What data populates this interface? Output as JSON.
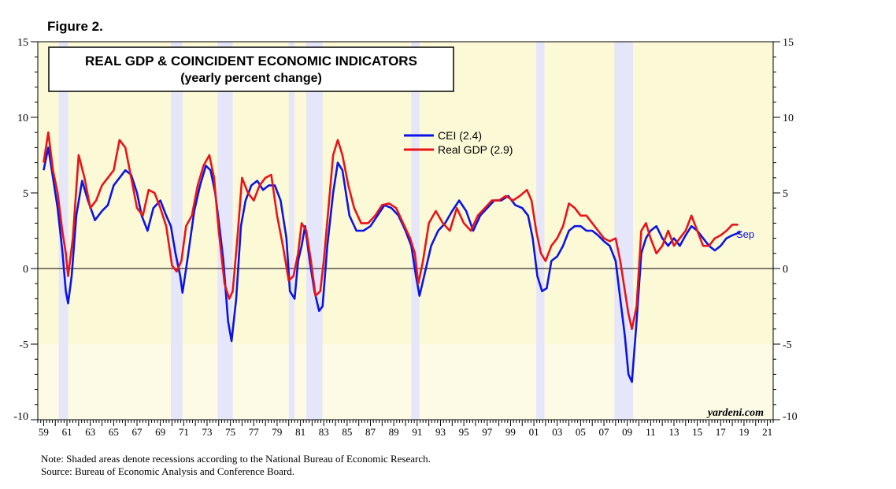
{
  "figure_label": "Figure 2.",
  "footnote": "Note: Shaded areas denote recessions according to the National Bureau of Economic Research.",
  "source": "Source: Bureau of Economic Analysis and Conference Board.",
  "watermark": "yardeni.com",
  "colors": {
    "background": "#fcf9d6",
    "recession": "#e6e6fa",
    "cei": "#0b14e6",
    "gdp": "#e8141a"
  },
  "chart_data": {
    "type": "line",
    "title": "REAL GDP & COINCIDENT ECONOMIC INDICATORS",
    "subtitle": "(yearly percent change)",
    "xlabel": "",
    "ylabel": "",
    "xlim": [
      1958.5,
      2021.5
    ],
    "ylim": [
      -10,
      15
    ],
    "yticks": [
      -10,
      -5,
      0,
      5,
      10,
      15
    ],
    "xtick_labels": [
      "59",
      "61",
      "63",
      "65",
      "67",
      "69",
      "71",
      "73",
      "75",
      "77",
      "79",
      "81",
      "83",
      "85",
      "87",
      "89",
      "91",
      "93",
      "95",
      "97",
      "99",
      "01",
      "03",
      "05",
      "07",
      "09",
      "11",
      "13",
      "15",
      "17",
      "19",
      "21"
    ],
    "xtick_years": [
      1959,
      1961,
      1963,
      1965,
      1967,
      1969,
      1971,
      1973,
      1975,
      1977,
      1979,
      1981,
      1983,
      1985,
      1987,
      1989,
      1991,
      1993,
      1995,
      1997,
      1999,
      2001,
      2003,
      2005,
      2007,
      2009,
      2011,
      2013,
      2015,
      2017,
      2019,
      2021
    ],
    "legend_position": "top-center",
    "end_annotation": "Sep",
    "recessions": [
      [
        1960.3,
        1961.1
      ],
      [
        1969.9,
        1970.9
      ],
      [
        1973.9,
        1975.2
      ],
      [
        1980.0,
        1980.5
      ],
      [
        1981.5,
        1982.9
      ],
      [
        1990.5,
        1991.2
      ],
      [
        2001.2,
        2001.9
      ],
      [
        2007.9,
        2009.5
      ]
    ],
    "series": [
      {
        "name": "CEI (2.4)",
        "x": [
          1959.0,
          1959.4,
          1959.8,
          1960.2,
          1960.6,
          1960.9,
          1961.1,
          1961.4,
          1961.8,
          1962.3,
          1962.8,
          1963.4,
          1964.0,
          1964.5,
          1965.0,
          1965.5,
          1966.0,
          1966.5,
          1967.0,
          1967.4,
          1967.9,
          1968.4,
          1969.0,
          1969.5,
          1969.9,
          1970.3,
          1970.7,
          1970.9,
          1971.3,
          1971.9,
          1972.4,
          1972.9,
          1973.3,
          1973.7,
          1974.1,
          1974.4,
          1974.8,
          1975.1,
          1975.5,
          1975.9,
          1976.3,
          1976.8,
          1977.3,
          1977.8,
          1978.3,
          1978.8,
          1979.3,
          1979.8,
          1980.1,
          1980.5,
          1980.8,
          1981.1,
          1981.4,
          1981.8,
          1982.2,
          1982.6,
          1982.9,
          1983.3,
          1983.8,
          1984.2,
          1984.6,
          1985.2,
          1985.8,
          1986.4,
          1987.0,
          1987.6,
          1988.2,
          1988.8,
          1989.4,
          1990.0,
          1990.5,
          1990.9,
          1991.2,
          1991.6,
          1992.2,
          1992.8,
          1993.4,
          1994.0,
          1994.6,
          1995.2,
          1995.8,
          1996.4,
          1997.0,
          1997.6,
          1998.2,
          1998.8,
          1999.4,
          2000.0,
          2000.5,
          2000.9,
          2001.3,
          2001.7,
          2002.1,
          2002.5,
          2003.0,
          2003.5,
          2004.0,
          2004.5,
          2005.0,
          2005.5,
          2006.0,
          2006.5,
          2007.0,
          2007.5,
          2008.0,
          2008.4,
          2008.8,
          2009.1,
          2009.4,
          2009.8,
          2010.2,
          2010.6,
          2011.0,
          2011.5,
          2012.0,
          2012.5,
          2013.0,
          2013.5,
          2014.0,
          2014.5,
          2015.0,
          2015.5,
          2016.0,
          2016.5,
          2017.0,
          2017.5,
          2018.0,
          2018.7
        ],
        "y": [
          6.5,
          8.0,
          6.0,
          4.0,
          1.2,
          -1.5,
          -2.3,
          -0.5,
          3.5,
          5.8,
          4.5,
          3.2,
          3.8,
          4.2,
          5.5,
          6.0,
          6.5,
          6.2,
          5.0,
          3.5,
          2.5,
          4.0,
          4.5,
          3.5,
          2.8,
          1.0,
          -0.5,
          -1.6,
          0.5,
          3.8,
          5.5,
          6.8,
          6.5,
          5.0,
          2.5,
          0.5,
          -3.5,
          -4.8,
          -2.0,
          2.8,
          4.5,
          5.5,
          5.8,
          5.2,
          5.5,
          5.5,
          4.5,
          2.0,
          -1.5,
          -2.0,
          0.5,
          1.5,
          2.8,
          0.5,
          -1.5,
          -2.8,
          -2.5,
          1.5,
          5.0,
          7.0,
          6.5,
          3.5,
          2.5,
          2.5,
          2.8,
          3.5,
          4.2,
          4.0,
          3.5,
          2.5,
          1.5,
          -0.5,
          -1.8,
          -0.5,
          1.5,
          2.5,
          3.0,
          3.8,
          4.5,
          3.8,
          2.5,
          3.5,
          4.0,
          4.5,
          4.5,
          4.8,
          4.2,
          4.0,
          3.5,
          2.0,
          -0.5,
          -1.5,
          -1.3,
          0.5,
          0.8,
          1.5,
          2.5,
          2.8,
          2.8,
          2.5,
          2.5,
          2.2,
          1.8,
          1.5,
          0.5,
          -2.0,
          -4.5,
          -7.0,
          -7.5,
          -3.5,
          1.0,
          2.0,
          2.5,
          2.8,
          2.0,
          1.5,
          2.0,
          1.5,
          2.2,
          2.8,
          2.5,
          2.0,
          1.5,
          1.2,
          1.5,
          2.0,
          2.2,
          2.4
        ]
      },
      {
        "name": "Real GDP (2.9)",
        "x": [
          1959.0,
          1959.4,
          1959.8,
          1960.2,
          1960.6,
          1960.9,
          1961.1,
          1961.5,
          1962.0,
          1962.5,
          1963.0,
          1963.5,
          1964.0,
          1964.5,
          1965.0,
          1965.5,
          1966.0,
          1966.5,
          1967.0,
          1967.5,
          1968.0,
          1968.5,
          1969.0,
          1969.5,
          1970.0,
          1970.4,
          1970.8,
          1971.2,
          1971.7,
          1972.2,
          1972.7,
          1973.2,
          1973.6,
          1974.0,
          1974.5,
          1974.9,
          1975.2,
          1975.6,
          1976.0,
          1976.5,
          1977.0,
          1977.5,
          1978.0,
          1978.5,
          1979.0,
          1979.5,
          1980.0,
          1980.4,
          1980.8,
          1981.1,
          1981.5,
          1981.9,
          1982.3,
          1982.7,
          1983.0,
          1983.4,
          1983.8,
          1984.2,
          1984.6,
          1985.1,
          1985.6,
          1986.2,
          1986.8,
          1987.4,
          1988.0,
          1988.6,
          1989.2,
          1989.8,
          1990.4,
          1990.8,
          1991.1,
          1991.5,
          1992.0,
          1992.6,
          1993.2,
          1993.8,
          1994.4,
          1995.0,
          1995.6,
          1996.2,
          1996.8,
          1997.4,
          1998.0,
          1998.6,
          1999.2,
          1999.8,
          2000.4,
          2000.8,
          2001.2,
          2001.6,
          2002.0,
          2002.5,
          2003.0,
          2003.5,
          2004.0,
          2004.5,
          2005.0,
          2005.5,
          2006.0,
          2006.5,
          2007.0,
          2007.5,
          2008.0,
          2008.4,
          2008.8,
          2009.1,
          2009.4,
          2009.8,
          2010.2,
          2010.6,
          2011.0,
          2011.5,
          2012.0,
          2012.5,
          2013.0,
          2013.5,
          2014.0,
          2014.5,
          2015.0,
          2015.5,
          2016.0,
          2016.5,
          2017.0,
          2017.5,
          2018.0,
          2018.5
        ],
        "y": [
          7.0,
          9.0,
          6.5,
          5.0,
          2.5,
          1.0,
          -0.5,
          2.0,
          7.5,
          6.0,
          4.0,
          4.5,
          5.5,
          6.0,
          6.5,
          8.5,
          8.0,
          6.0,
          4.0,
          3.5,
          5.2,
          5.0,
          4.0,
          2.8,
          0.2,
          -0.2,
          0.5,
          2.8,
          3.5,
          5.5,
          6.8,
          7.5,
          6.0,
          2.5,
          -1.0,
          -2.0,
          -1.5,
          2.0,
          6.0,
          5.0,
          4.5,
          5.5,
          6.0,
          6.2,
          3.5,
          1.5,
          -0.8,
          -0.5,
          1.0,
          3.0,
          2.5,
          0.5,
          -1.8,
          -1.5,
          0.5,
          4.0,
          7.5,
          8.5,
          7.5,
          5.5,
          4.0,
          3.0,
          3.0,
          3.5,
          4.2,
          4.3,
          4.0,
          3.0,
          2.0,
          1.0,
          -1.0,
          0.5,
          3.0,
          3.8,
          3.0,
          2.5,
          4.0,
          3.0,
          2.5,
          3.5,
          4.0,
          4.5,
          4.5,
          4.8,
          4.5,
          4.8,
          5.2,
          4.5,
          2.5,
          1.0,
          0.5,
          1.5,
          2.0,
          2.8,
          4.3,
          4.0,
          3.5,
          3.5,
          3.0,
          2.5,
          2.0,
          1.8,
          2.0,
          0.5,
          -1.5,
          -3.0,
          -4.0,
          -2.5,
          2.5,
          3.0,
          2.0,
          1.0,
          1.5,
          2.5,
          1.5,
          2.0,
          2.5,
          3.5,
          2.5,
          1.5,
          1.5,
          2.0,
          2.2,
          2.5,
          2.9,
          2.9
        ]
      }
    ]
  }
}
